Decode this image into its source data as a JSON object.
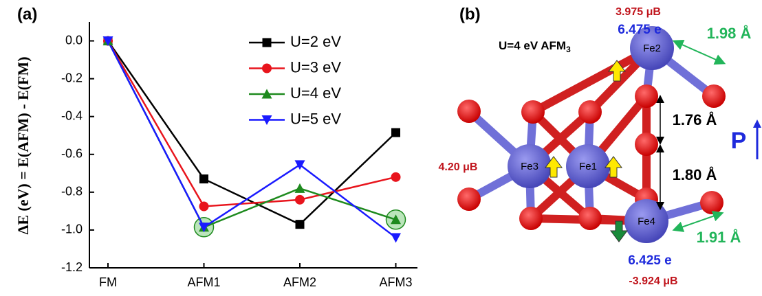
{
  "chart_data": {
    "type": "line",
    "panel_label": "(a)",
    "y_label": "ΔE (eV) = E(AFM) - E(FM)",
    "categories": [
      "FM",
      "AFM1",
      "AFM2",
      "AFM3"
    ],
    "series": [
      {
        "name": "U=2 eV",
        "color": "#000000",
        "marker": "square",
        "values": [
          0,
          -0.73,
          -0.97,
          -0.485
        ]
      },
      {
        "name": "U=3 eV",
        "color": "#e8141c",
        "marker": "circle",
        "values": [
          0,
          -0.875,
          -0.84,
          -0.72
        ]
      },
      {
        "name": "U=4 eV",
        "color": "#1e8a1e",
        "marker": "triangle-up",
        "values": [
          0,
          -0.985,
          -0.78,
          -0.945
        ]
      },
      {
        "name": "U=5 eV",
        "color": "#1a1aff",
        "marker": "triangle-down",
        "values": [
          0,
          -0.985,
          -0.655,
          -1.04
        ]
      }
    ],
    "ylim": [
      -1.2,
      0.1
    ],
    "yticks": [
      {
        "value": 0,
        "label": "0.0"
      },
      -0.2,
      -0.4,
      -0.6,
      -0.8,
      {
        "value": -1,
        "label": "-1.0"
      },
      -1.2
    ],
    "grid": false,
    "legend": "upper-right"
  },
  "diagram": {
    "panel_label": "(b)",
    "title": "U=4 eV AFM",
    "title_sub": "3",
    "atoms": [
      "Fe1",
      "Fe2",
      "Fe3",
      "Fe4"
    ],
    "annotations": {
      "fe2_moment": "3.975 μB",
      "fe2_charge": "6.475 e",
      "fe2_bond": "1.98 Å",
      "upper_bond": "1.76 Å",
      "lower_bond": "1.80 Å",
      "fe3_moment": "4.20 μB",
      "polarization": "P",
      "fe4_bond": "1.91 Å",
      "fe4_charge": "6.425 e",
      "fe4_moment": "-3.924 μB"
    }
  }
}
